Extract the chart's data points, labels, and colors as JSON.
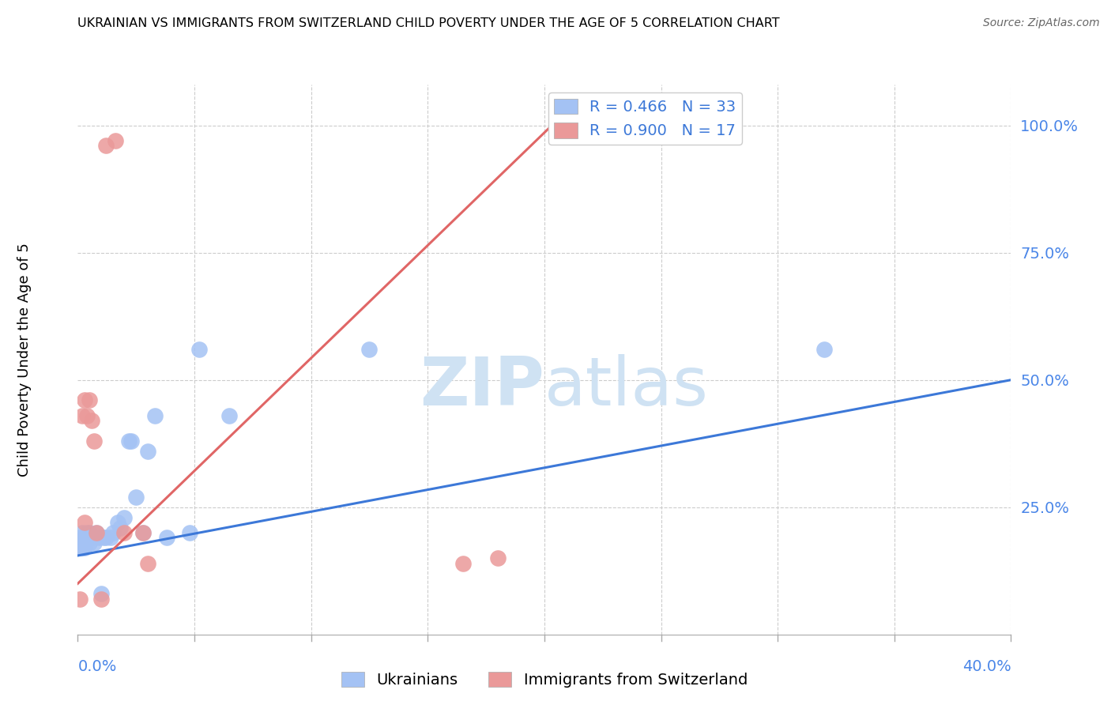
{
  "title": "UKRAINIAN VS IMMIGRANTS FROM SWITZERLAND CHILD POVERTY UNDER THE AGE OF 5 CORRELATION CHART",
  "source": "Source: ZipAtlas.com",
  "ylabel": "Child Poverty Under the Age of 5",
  "yticks": [
    0.0,
    0.25,
    0.5,
    0.75,
    1.0
  ],
  "ytick_labels": [
    "",
    "25.0%",
    "50.0%",
    "75.0%",
    "100.0%"
  ],
  "xlim": [
    0.0,
    0.4
  ],
  "ylim": [
    0.0,
    1.08
  ],
  "legend1_label": "R = 0.466   N = 33",
  "legend2_label": "R = 0.900   N = 17",
  "legend_bottom_label1": "Ukrainians",
  "legend_bottom_label2": "Immigrants from Switzerland",
  "blue_color": "#a4c2f4",
  "pink_color": "#ea9999",
  "blue_line_color": "#3c78d8",
  "pink_line_color": "#e06666",
  "axis_label_color": "#4a86e8",
  "watermark_color": "#cfe2f3",
  "ukrainians_x": [
    0.001,
    0.001,
    0.002,
    0.002,
    0.003,
    0.003,
    0.004,
    0.005,
    0.005,
    0.006,
    0.007,
    0.008,
    0.009,
    0.01,
    0.011,
    0.012,
    0.014,
    0.015,
    0.017,
    0.018,
    0.02,
    0.022,
    0.023,
    0.025,
    0.028,
    0.03,
    0.033,
    0.038,
    0.048,
    0.052,
    0.065,
    0.125,
    0.32
  ],
  "ukrainians_y": [
    0.19,
    0.17,
    0.2,
    0.17,
    0.19,
    0.17,
    0.2,
    0.2,
    0.18,
    0.19,
    0.18,
    0.2,
    0.19,
    0.08,
    0.19,
    0.19,
    0.19,
    0.2,
    0.22,
    0.21,
    0.23,
    0.38,
    0.38,
    0.27,
    0.2,
    0.36,
    0.43,
    0.19,
    0.2,
    0.56,
    0.43,
    0.56,
    0.56
  ],
  "swiss_x": [
    0.001,
    0.002,
    0.003,
    0.003,
    0.004,
    0.005,
    0.006,
    0.007,
    0.008,
    0.01,
    0.012,
    0.016,
    0.02,
    0.028,
    0.03,
    0.165,
    0.18
  ],
  "swiss_y": [
    0.07,
    0.43,
    0.46,
    0.22,
    0.43,
    0.46,
    0.42,
    0.38,
    0.2,
    0.07,
    0.96,
    0.97,
    0.2,
    0.2,
    0.14,
    0.14,
    0.15
  ],
  "blue_line_x": [
    0.0,
    0.4
  ],
  "blue_line_y": [
    0.155,
    0.5
  ],
  "pink_line_x": [
    0.0,
    0.21
  ],
  "pink_line_y": [
    0.1,
    1.03
  ]
}
